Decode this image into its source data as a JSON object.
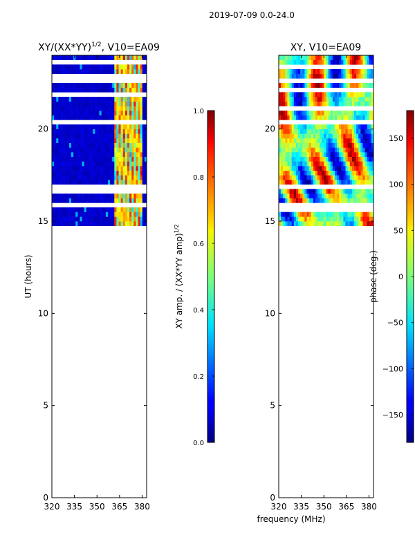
{
  "suptitle": "2019-07-09 0.0-24.0",
  "xlabel": "frequency (MHz)",
  "chart_data": [
    {
      "type": "heatmap",
      "title_main": "XY/(XX*YY)",
      "title_sup": "1/2",
      "title_tail": ", V10=EA09",
      "x_range": [
        320,
        383
      ],
      "y_range": [
        0,
        24
      ],
      "x_ticks": [
        320,
        335,
        350,
        365,
        380
      ],
      "y_ticks": [
        0,
        5,
        10,
        15,
        20
      ],
      "ylabel": "UT (hours)",
      "data_start_ut": 14.8,
      "colorbar": {
        "range": [
          0.0,
          1.0
        ],
        "ticks": [
          "0.0",
          "0.2",
          "0.4",
          "0.6",
          "0.8",
          "1.0"
        ],
        "tick_values": [
          0.0,
          0.2,
          0.4,
          0.6,
          0.8,
          1.0
        ],
        "label_main": "XY amp. / (XX*YY amp)",
        "label_sup": "1/2"
      }
    },
    {
      "type": "heatmap",
      "title": "XY, V10=EA09",
      "x_range": [
        320,
        383
      ],
      "y_range": [
        0,
        24
      ],
      "x_ticks": [
        320,
        335,
        350,
        365,
        380
      ],
      "y_ticks": [
        0,
        5,
        10,
        15,
        20
      ],
      "data_start_ut": 14.8,
      "colorbar": {
        "range": [
          -180,
          180
        ],
        "ticks": [
          "−150",
          "−100",
          "−50",
          "0",
          "50",
          "100",
          "150"
        ],
        "tick_values": [
          -150,
          -100,
          -50,
          0,
          50,
          100,
          150
        ],
        "label": "phase (deg.)"
      }
    }
  ]
}
